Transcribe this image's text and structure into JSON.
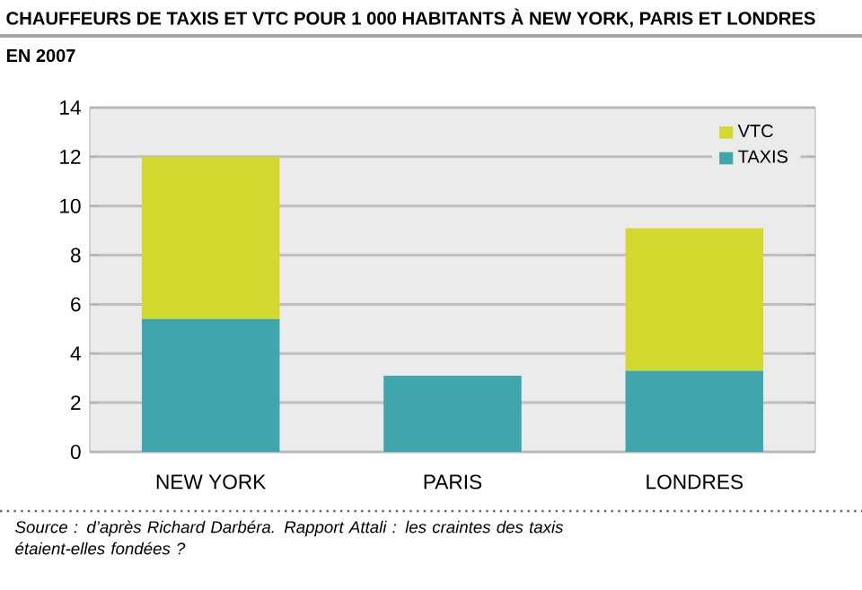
{
  "chart_data": {
    "type": "bar",
    "title": "CHAUFFEURS DE TAXIS ET VTC POUR 1 000 HABITANTS À NEW YORK, PARIS ET LONDRES",
    "subtitle": "EN 2007",
    "categories": [
      "NEW YORK",
      "PARIS",
      "LONDRES"
    ],
    "series": [
      {
        "name": "TAXIS",
        "color": "#40a6ad",
        "values": [
          5.4,
          3.1,
          3.3
        ]
      },
      {
        "name": "VTC",
        "color": "#d4d930",
        "values": [
          6.6,
          null,
          5.8
        ]
      }
    ],
    "stacked": true,
    "ylim": [
      0,
      14
    ],
    "yticks": [
      0,
      2,
      4,
      6,
      8,
      10,
      12,
      14
    ],
    "grid": "y",
    "legend": "top right",
    "annotations": [
      "Source : d’après Richard Darbéra. Rapport Attali : les craintes des taxis étaient-elles fondées ?"
    ]
  }
}
